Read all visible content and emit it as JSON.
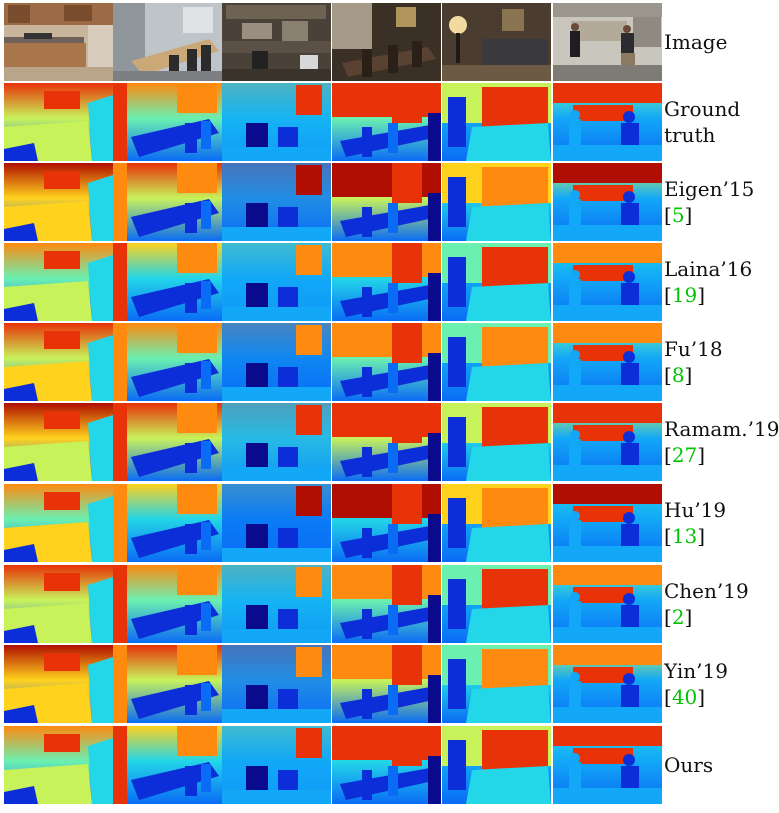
{
  "columns": 6,
  "rows": [
    {
      "label": [
        "Image"
      ],
      "cite": null,
      "kind": "image"
    },
    {
      "label": [
        "Ground",
        "truth"
      ],
      "cite": null,
      "kind": "depth"
    },
    {
      "label": [
        "Eigen’15"
      ],
      "cite": "5",
      "kind": "depth"
    },
    {
      "label": [
        "Laina’16"
      ],
      "cite": "19",
      "kind": "depth"
    },
    {
      "label": [
        "Fu’18"
      ],
      "cite": "8",
      "kind": "depth"
    },
    {
      "label": [
        "Ramam.’19"
      ],
      "cite": "27",
      "kind": "depth"
    },
    {
      "label": [
        "Hu’19"
      ],
      "cite": "13",
      "kind": "depth"
    },
    {
      "label": [
        "Chen’19"
      ],
      "cite": "2",
      "kind": "depth"
    },
    {
      "label": [
        "Yin’19"
      ],
      "cite": "40",
      "kind": "depth"
    },
    {
      "label": [
        "Ours"
      ],
      "cite": null,
      "kind": "depth"
    }
  ],
  "scenes": [
    {
      "name": "kitchen",
      "photo": "kitchen-photo"
    },
    {
      "name": "dining-room",
      "photo": "dining-room-photo"
    },
    {
      "name": "office-desks",
      "photo": "office-desks-photo"
    },
    {
      "name": "dining-chairs",
      "photo": "dining-chairs-photo"
    },
    {
      "name": "living-room-lamp",
      "photo": "living-room-lamp-photo"
    },
    {
      "name": "office-people",
      "photo": "office-people-photo"
    }
  ],
  "colors": {
    "citation": "#00c400",
    "depth_near": "#1a1aa0",
    "depth_far": "#c01000"
  }
}
